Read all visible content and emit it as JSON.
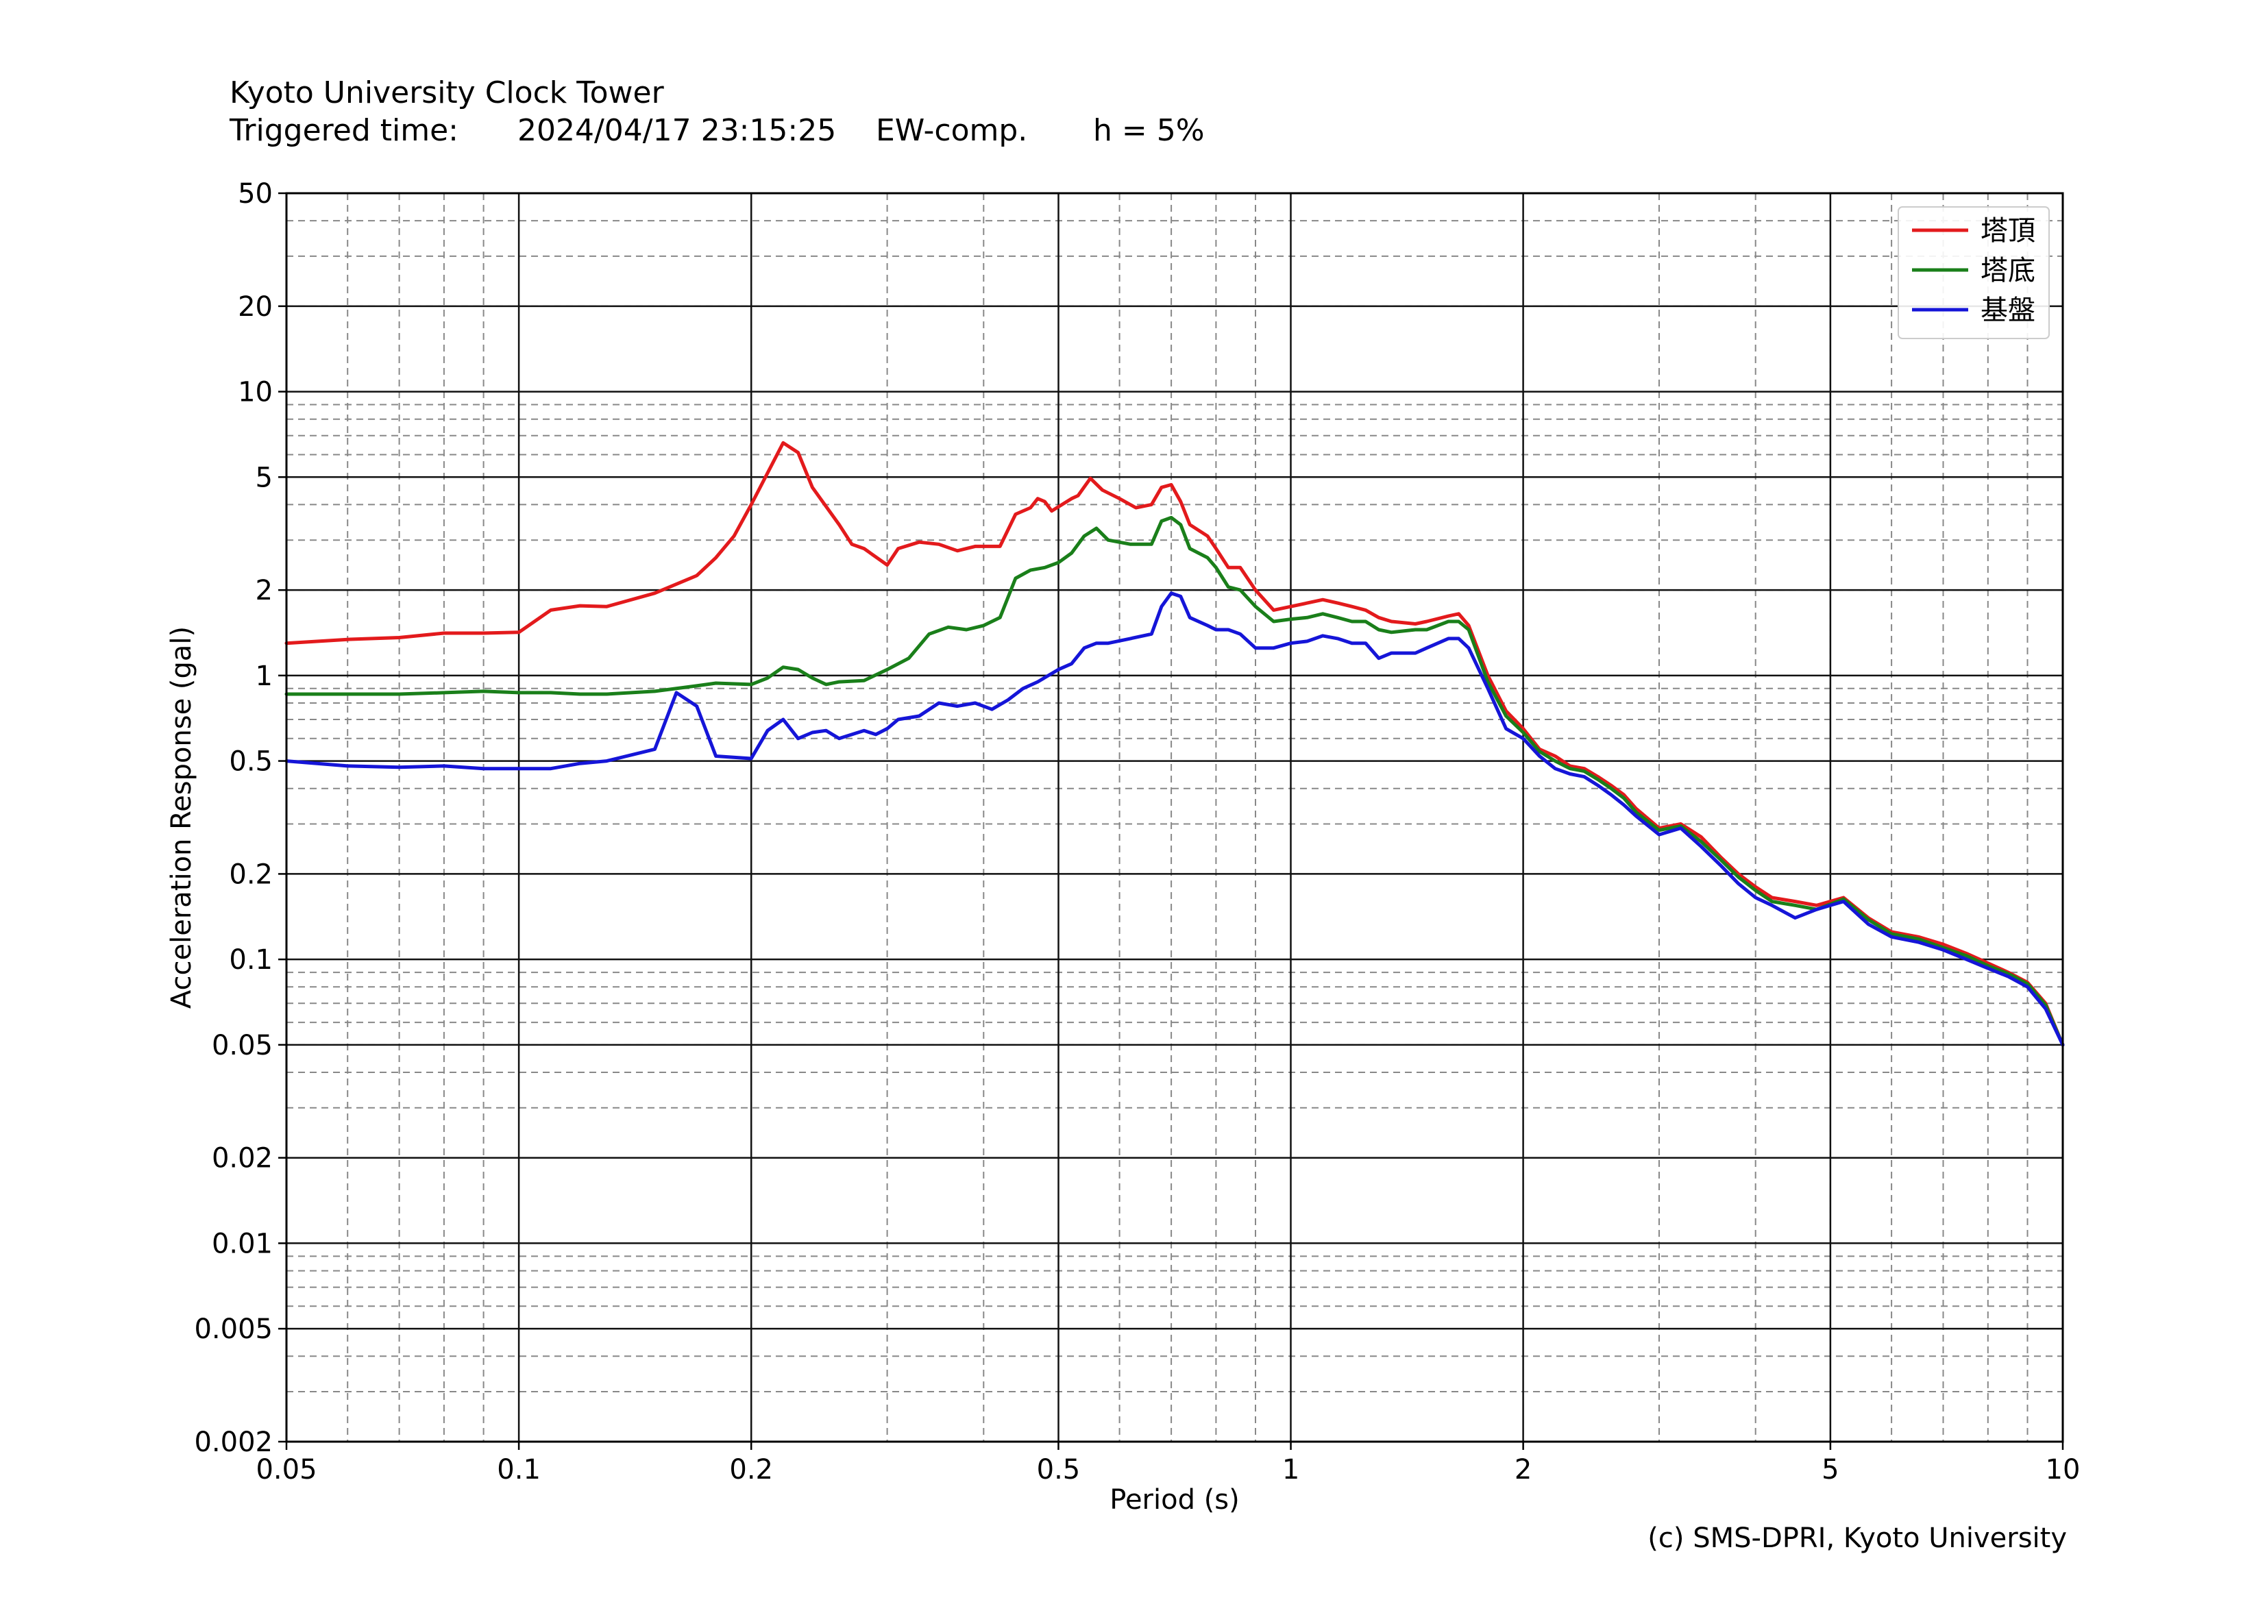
{
  "chart_data": {
    "type": "line",
    "title": "Kyoto University Clock Tower",
    "subtitle": {
      "triggered_label": "Triggered time:",
      "triggered_time": "2024/04/17 23:15:25",
      "component": "EW-comp.",
      "damping": "h = 5%"
    },
    "xlabel": "Period (s)",
    "ylabel": "Acceleration Response (gal)",
    "x_scale": "log",
    "y_scale": "log",
    "xlim": [
      0.05,
      10
    ],
    "ylim": [
      0.002,
      50
    ],
    "x_ticks": [
      {
        "value": 0.05,
        "label": "0.05"
      },
      {
        "value": 0.1,
        "label": "0.1"
      },
      {
        "value": 0.2,
        "label": "0.2"
      },
      {
        "value": 0.5,
        "label": "0.5"
      },
      {
        "value": 1,
        "label": "1"
      },
      {
        "value": 2,
        "label": "2"
      },
      {
        "value": 5,
        "label": "5"
      },
      {
        "value": 10,
        "label": "10"
      }
    ],
    "y_ticks": [
      {
        "value": 0.002,
        "label": "0.002"
      },
      {
        "value": 0.005,
        "label": "0.005"
      },
      {
        "value": 0.01,
        "label": "0.01"
      },
      {
        "value": 0.02,
        "label": "0.02"
      },
      {
        "value": 0.05,
        "label": "0.05"
      },
      {
        "value": 0.1,
        "label": "0.1"
      },
      {
        "value": 0.2,
        "label": "0.2"
      },
      {
        "value": 0.5,
        "label": "0.5"
      },
      {
        "value": 1,
        "label": "1"
      },
      {
        "value": 2,
        "label": "2"
      },
      {
        "value": 5,
        "label": "5"
      },
      {
        "value": 10,
        "label": "10"
      },
      {
        "value": 20,
        "label": "20"
      },
      {
        "value": 50,
        "label": "50"
      }
    ],
    "grid": true,
    "legend_position": "top-right",
    "series": [
      {
        "name": "塔頂",
        "color": "#e31a1c",
        "points": [
          [
            0.05,
            1.3
          ],
          [
            0.06,
            1.34
          ],
          [
            0.07,
            1.36
          ],
          [
            0.08,
            1.41
          ],
          [
            0.09,
            1.41
          ],
          [
            0.1,
            1.42
          ],
          [
            0.11,
            1.7
          ],
          [
            0.12,
            1.76
          ],
          [
            0.13,
            1.75
          ],
          [
            0.15,
            1.95
          ],
          [
            0.17,
            2.25
          ],
          [
            0.18,
            2.6
          ],
          [
            0.19,
            3.1
          ],
          [
            0.2,
            4.0
          ],
          [
            0.22,
            6.6
          ],
          [
            0.23,
            6.1
          ],
          [
            0.24,
            4.6
          ],
          [
            0.26,
            3.4
          ],
          [
            0.27,
            2.9
          ],
          [
            0.28,
            2.8
          ],
          [
            0.3,
            2.45
          ],
          [
            0.31,
            2.8
          ],
          [
            0.33,
            2.95
          ],
          [
            0.35,
            2.9
          ],
          [
            0.37,
            2.75
          ],
          [
            0.39,
            2.85
          ],
          [
            0.42,
            2.85
          ],
          [
            0.44,
            3.7
          ],
          [
            0.46,
            3.9
          ],
          [
            0.47,
            4.2
          ],
          [
            0.48,
            4.1
          ],
          [
            0.49,
            3.8
          ],
          [
            0.52,
            4.2
          ],
          [
            0.53,
            4.3
          ],
          [
            0.55,
            4.95
          ],
          [
            0.57,
            4.5
          ],
          [
            0.6,
            4.2
          ],
          [
            0.63,
            3.9
          ],
          [
            0.66,
            4.0
          ],
          [
            0.68,
            4.6
          ],
          [
            0.7,
            4.7
          ],
          [
            0.72,
            4.1
          ],
          [
            0.74,
            3.4
          ],
          [
            0.78,
            3.1
          ],
          [
            0.8,
            2.8
          ],
          [
            0.83,
            2.4
          ],
          [
            0.86,
            2.4
          ],
          [
            0.9,
            2.0
          ],
          [
            0.95,
            1.7
          ],
          [
            1.0,
            1.75
          ],
          [
            1.05,
            1.8
          ],
          [
            1.1,
            1.85
          ],
          [
            1.15,
            1.8
          ],
          [
            1.2,
            1.75
          ],
          [
            1.25,
            1.7
          ],
          [
            1.3,
            1.6
          ],
          [
            1.35,
            1.55
          ],
          [
            1.45,
            1.52
          ],
          [
            1.5,
            1.55
          ],
          [
            1.6,
            1.62
          ],
          [
            1.65,
            1.65
          ],
          [
            1.7,
            1.5
          ],
          [
            1.8,
            1.0
          ],
          [
            1.9,
            0.75
          ],
          [
            2.0,
            0.65
          ],
          [
            2.1,
            0.55
          ],
          [
            2.2,
            0.52
          ],
          [
            2.3,
            0.48
          ],
          [
            2.4,
            0.47
          ],
          [
            2.5,
            0.44
          ],
          [
            2.6,
            0.41
          ],
          [
            2.7,
            0.38
          ],
          [
            2.8,
            0.34
          ],
          [
            3.0,
            0.29
          ],
          [
            3.2,
            0.3
          ],
          [
            3.4,
            0.27
          ],
          [
            3.6,
            0.23
          ],
          [
            3.8,
            0.2
          ],
          [
            4.0,
            0.18
          ],
          [
            4.2,
            0.165
          ],
          [
            4.5,
            0.16
          ],
          [
            4.8,
            0.155
          ],
          [
            5.2,
            0.165
          ],
          [
            5.6,
            0.14
          ],
          [
            6.0,
            0.125
          ],
          [
            6.5,
            0.12
          ],
          [
            7.0,
            0.113
          ],
          [
            7.5,
            0.105
          ],
          [
            8.0,
            0.097
          ],
          [
            8.5,
            0.09
          ],
          [
            9.0,
            0.083
          ],
          [
            9.5,
            0.07
          ],
          [
            10.0,
            0.05
          ]
        ]
      },
      {
        "name": "塔底",
        "color": "#1a7f1a",
        "points": [
          [
            0.05,
            0.86
          ],
          [
            0.06,
            0.86
          ],
          [
            0.07,
            0.86
          ],
          [
            0.08,
            0.87
          ],
          [
            0.09,
            0.88
          ],
          [
            0.1,
            0.87
          ],
          [
            0.11,
            0.87
          ],
          [
            0.12,
            0.86
          ],
          [
            0.13,
            0.86
          ],
          [
            0.15,
            0.88
          ],
          [
            0.17,
            0.92
          ],
          [
            0.18,
            0.94
          ],
          [
            0.2,
            0.93
          ],
          [
            0.21,
            0.98
          ],
          [
            0.22,
            1.07
          ],
          [
            0.23,
            1.05
          ],
          [
            0.24,
            0.98
          ],
          [
            0.25,
            0.93
          ],
          [
            0.26,
            0.95
          ],
          [
            0.28,
            0.96
          ],
          [
            0.3,
            1.05
          ],
          [
            0.32,
            1.15
          ],
          [
            0.34,
            1.4
          ],
          [
            0.36,
            1.48
          ],
          [
            0.38,
            1.45
          ],
          [
            0.4,
            1.5
          ],
          [
            0.42,
            1.6
          ],
          [
            0.44,
            2.2
          ],
          [
            0.46,
            2.35
          ],
          [
            0.48,
            2.4
          ],
          [
            0.5,
            2.5
          ],
          [
            0.52,
            2.7
          ],
          [
            0.54,
            3.1
          ],
          [
            0.56,
            3.3
          ],
          [
            0.58,
            3.0
          ],
          [
            0.62,
            2.9
          ],
          [
            0.66,
            2.9
          ],
          [
            0.68,
            3.5
          ],
          [
            0.7,
            3.6
          ],
          [
            0.72,
            3.4
          ],
          [
            0.74,
            2.8
          ],
          [
            0.78,
            2.6
          ],
          [
            0.8,
            2.4
          ],
          [
            0.83,
            2.05
          ],
          [
            0.86,
            2.0
          ],
          [
            0.9,
            1.75
          ],
          [
            0.95,
            1.55
          ],
          [
            1.0,
            1.58
          ],
          [
            1.05,
            1.6
          ],
          [
            1.1,
            1.65
          ],
          [
            1.15,
            1.6
          ],
          [
            1.2,
            1.55
          ],
          [
            1.25,
            1.55
          ],
          [
            1.3,
            1.45
          ],
          [
            1.35,
            1.42
          ],
          [
            1.45,
            1.45
          ],
          [
            1.5,
            1.45
          ],
          [
            1.6,
            1.55
          ],
          [
            1.65,
            1.55
          ],
          [
            1.7,
            1.45
          ],
          [
            1.8,
            0.95
          ],
          [
            1.9,
            0.72
          ],
          [
            2.0,
            0.63
          ],
          [
            2.1,
            0.54
          ],
          [
            2.2,
            0.5
          ],
          [
            2.3,
            0.47
          ],
          [
            2.4,
            0.46
          ],
          [
            2.5,
            0.43
          ],
          [
            2.6,
            0.4
          ],
          [
            2.7,
            0.37
          ],
          [
            2.8,
            0.33
          ],
          [
            3.0,
            0.285
          ],
          [
            3.2,
            0.295
          ],
          [
            3.4,
            0.26
          ],
          [
            3.6,
            0.225
          ],
          [
            3.8,
            0.195
          ],
          [
            4.0,
            0.175
          ],
          [
            4.2,
            0.16
          ],
          [
            4.5,
            0.155
          ],
          [
            4.8,
            0.15
          ],
          [
            5.2,
            0.163
          ],
          [
            5.6,
            0.138
          ],
          [
            6.0,
            0.123
          ],
          [
            6.5,
            0.118
          ],
          [
            7.0,
            0.11
          ],
          [
            7.5,
            0.103
          ],
          [
            8.0,
            0.095
          ],
          [
            8.5,
            0.089
          ],
          [
            9.0,
            0.082
          ],
          [
            9.5,
            0.069
          ],
          [
            10.0,
            0.05
          ]
        ]
      },
      {
        "name": "基盤",
        "color": "#1515d8",
        "points": [
          [
            0.05,
            0.5
          ],
          [
            0.06,
            0.48
          ],
          [
            0.07,
            0.475
          ],
          [
            0.08,
            0.48
          ],
          [
            0.09,
            0.47
          ],
          [
            0.1,
            0.47
          ],
          [
            0.11,
            0.47
          ],
          [
            0.12,
            0.49
          ],
          [
            0.13,
            0.5
          ],
          [
            0.15,
            0.55
          ],
          [
            0.16,
            0.87
          ],
          [
            0.17,
            0.78
          ],
          [
            0.18,
            0.52
          ],
          [
            0.2,
            0.51
          ],
          [
            0.21,
            0.64
          ],
          [
            0.22,
            0.7
          ],
          [
            0.23,
            0.6
          ],
          [
            0.24,
            0.63
          ],
          [
            0.25,
            0.64
          ],
          [
            0.26,
            0.6
          ],
          [
            0.28,
            0.64
          ],
          [
            0.29,
            0.62
          ],
          [
            0.3,
            0.65
          ],
          [
            0.31,
            0.7
          ],
          [
            0.33,
            0.72
          ],
          [
            0.35,
            0.8
          ],
          [
            0.37,
            0.78
          ],
          [
            0.39,
            0.8
          ],
          [
            0.41,
            0.76
          ],
          [
            0.43,
            0.82
          ],
          [
            0.45,
            0.9
          ],
          [
            0.47,
            0.95
          ],
          [
            0.5,
            1.05
          ],
          [
            0.52,
            1.1
          ],
          [
            0.54,
            1.25
          ],
          [
            0.56,
            1.3
          ],
          [
            0.58,
            1.3
          ],
          [
            0.62,
            1.35
          ],
          [
            0.66,
            1.4
          ],
          [
            0.68,
            1.75
          ],
          [
            0.7,
            1.95
          ],
          [
            0.72,
            1.9
          ],
          [
            0.74,
            1.6
          ],
          [
            0.78,
            1.5
          ],
          [
            0.8,
            1.45
          ],
          [
            0.83,
            1.45
          ],
          [
            0.86,
            1.4
          ],
          [
            0.9,
            1.25
          ],
          [
            0.95,
            1.25
          ],
          [
            1.0,
            1.3
          ],
          [
            1.05,
            1.32
          ],
          [
            1.1,
            1.38
          ],
          [
            1.15,
            1.35
          ],
          [
            1.2,
            1.3
          ],
          [
            1.25,
            1.3
          ],
          [
            1.3,
            1.15
          ],
          [
            1.35,
            1.2
          ],
          [
            1.45,
            1.2
          ],
          [
            1.5,
            1.25
          ],
          [
            1.6,
            1.35
          ],
          [
            1.65,
            1.35
          ],
          [
            1.7,
            1.25
          ],
          [
            1.8,
            0.9
          ],
          [
            1.9,
            0.65
          ],
          [
            2.0,
            0.6
          ],
          [
            2.1,
            0.52
          ],
          [
            2.2,
            0.47
          ],
          [
            2.3,
            0.45
          ],
          [
            2.4,
            0.44
          ],
          [
            2.5,
            0.41
          ],
          [
            2.6,
            0.38
          ],
          [
            2.7,
            0.35
          ],
          [
            2.8,
            0.32
          ],
          [
            3.0,
            0.275
          ],
          [
            3.2,
            0.29
          ],
          [
            3.4,
            0.25
          ],
          [
            3.6,
            0.215
          ],
          [
            3.8,
            0.185
          ],
          [
            4.0,
            0.165
          ],
          [
            4.2,
            0.155
          ],
          [
            4.5,
            0.14
          ],
          [
            4.8,
            0.15
          ],
          [
            5.2,
            0.16
          ],
          [
            5.6,
            0.133
          ],
          [
            6.0,
            0.12
          ],
          [
            6.5,
            0.115
          ],
          [
            7.0,
            0.108
          ],
          [
            7.5,
            0.1
          ],
          [
            8.0,
            0.093
          ],
          [
            8.5,
            0.087
          ],
          [
            9.0,
            0.08
          ],
          [
            9.5,
            0.067
          ],
          [
            10.0,
            0.05
          ]
        ]
      }
    ]
  },
  "copyright": "(c) SMS-DPRI, Kyoto University"
}
